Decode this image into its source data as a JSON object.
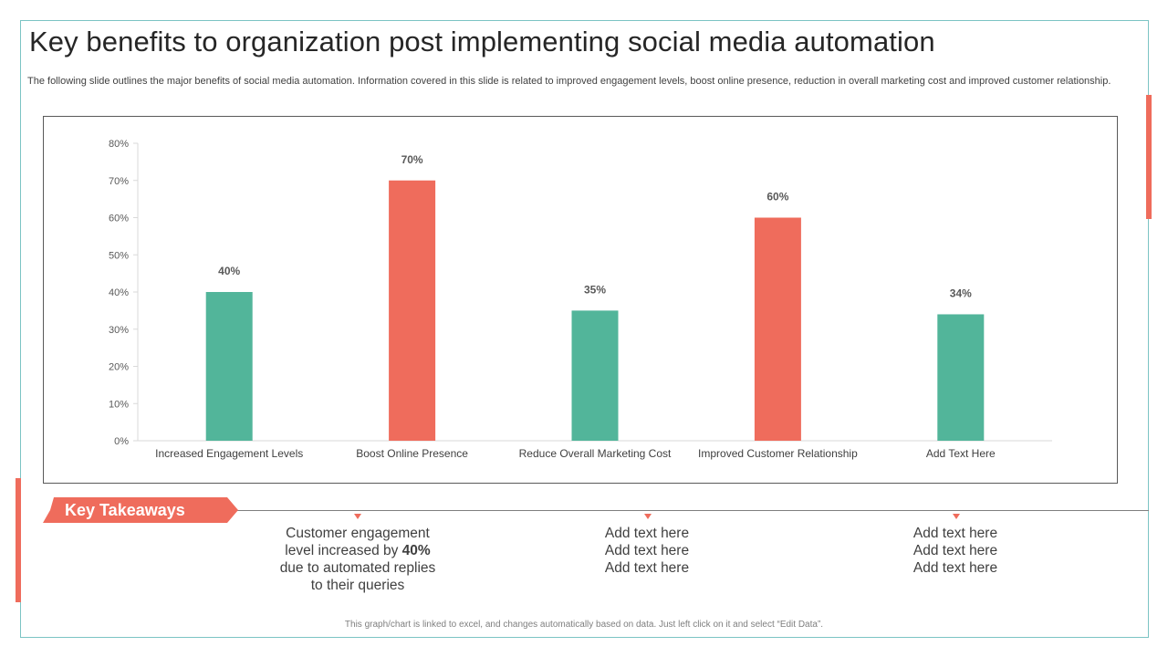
{
  "title": "Key benefits to organization post implementing social media automation",
  "subtitle": "The following slide outlines the major benefits of social media automation. Information covered in this slide is related to improved engagement levels, boost online presence, reduction in overall marketing cost and improved customer relationship.",
  "colors": {
    "accent": "#ef6c5c",
    "teal": "#52b59a",
    "frame": "#7cc4c4"
  },
  "chart_data": {
    "type": "bar",
    "title": "",
    "xlabel": "",
    "ylabel": "",
    "categories": [
      "Increased Engagement Levels",
      "Boost Online Presence",
      "Reduce Overall Marketing Cost",
      "Improved Customer Relationship",
      "Add Text Here"
    ],
    "values": [
      40,
      70,
      35,
      60,
      34
    ],
    "data_labels": [
      "40%",
      "70%",
      "35%",
      "60%",
      "34%"
    ],
    "bar_colors": [
      "#52b59a",
      "#ef6c5c",
      "#52b59a",
      "#ef6c5c",
      "#52b59a"
    ],
    "ylim": [
      0,
      80
    ],
    "yticks": [
      0,
      10,
      20,
      30,
      40,
      50,
      60,
      70,
      80
    ],
    "ytick_labels": [
      "0%",
      "10%",
      "20%",
      "30%",
      "40%",
      "50%",
      "60%",
      "70%",
      "80%"
    ],
    "grid": false,
    "legend": "none"
  },
  "takeaways": {
    "label": "Key Takeaways",
    "item1": {
      "line1": "Customer engagement",
      "line2_pre": "level increased by ",
      "line2_bold": "40%",
      "line3": "due to automated replies",
      "line4": "to their queries"
    },
    "item2": {
      "line1": "Add text here",
      "line2": "Add text here",
      "line3": "Add text here"
    },
    "item3": {
      "line1": "Add text here",
      "line2": "Add text here",
      "line3": "Add text here"
    }
  },
  "footnote": "This graph/chart is linked to excel, and changes automatically based on data. Just left click on it and select “Edit Data”."
}
